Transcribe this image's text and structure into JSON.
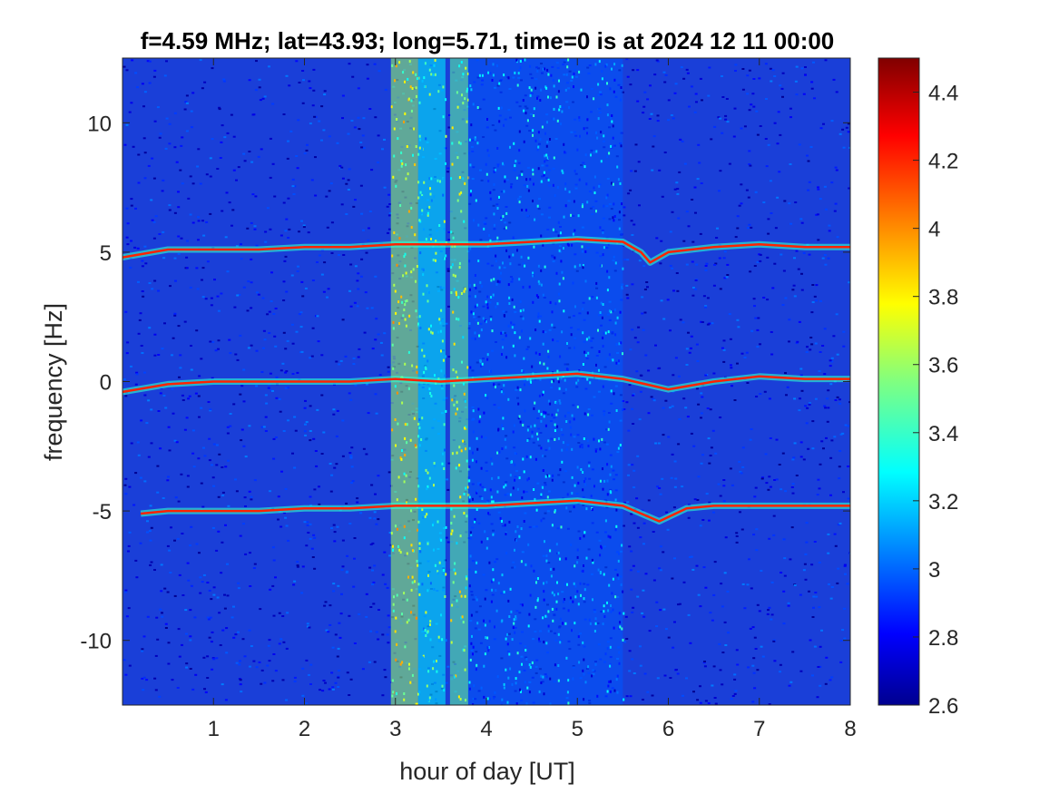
{
  "chart_data": {
    "type": "heatmap",
    "title": "f=4.59 MHz;  lat=43.93; long=5.71, time=0 is at 2024 12 11 00:00",
    "xlabel": "hour of day [UT]",
    "ylabel": "frequency [Hz]",
    "xlim": [
      0,
      8
    ],
    "ylim": [
      -12.5,
      12.5
    ],
    "x_ticks": [
      1,
      2,
      3,
      4,
      5,
      6,
      7,
      8
    ],
    "x_tick_labels": [
      "1",
      "2",
      "3",
      "4",
      "5",
      "6",
      "7",
      "8"
    ],
    "y_ticks": [
      10,
      5,
      0,
      -5,
      -10
    ],
    "y_tick_labels": [
      "10",
      "5",
      "0",
      "-5",
      "-10"
    ],
    "colorbar": {
      "colormap": "jet",
      "range": [
        2.6,
        4.5
      ],
      "ticks": [
        4.4,
        4.2,
        4,
        3.8,
        3.6,
        3.4,
        3.2,
        3,
        2.8,
        2.6
      ],
      "tick_labels": [
        "4.4",
        "4.2",
        "4",
        "3.8",
        "3.6",
        "3.4",
        "3.2",
        "3",
        "2.8",
        "2.6"
      ]
    },
    "background_level": 2.85,
    "traces": [
      {
        "center_hz": 5,
        "x_range": [
          0,
          8
        ],
        "points": [
          [
            0,
            4.8
          ],
          [
            0.5,
            5.1
          ],
          [
            1,
            5.1
          ],
          [
            1.5,
            5.1
          ],
          [
            2,
            5.2
          ],
          [
            2.5,
            5.2
          ],
          [
            3,
            5.3
          ],
          [
            3.5,
            5.3
          ],
          [
            4,
            5.3
          ],
          [
            4.5,
            5.4
          ],
          [
            5,
            5.5
          ],
          [
            5.5,
            5.4
          ],
          [
            5.7,
            5.0
          ],
          [
            5.8,
            4.6
          ],
          [
            6,
            5.0
          ],
          [
            6.5,
            5.2
          ],
          [
            7,
            5.3
          ],
          [
            7.5,
            5.2
          ],
          [
            8,
            5.2
          ]
        ]
      },
      {
        "center_hz": 0,
        "x_range": [
          0,
          8
        ],
        "points": [
          [
            0,
            -0.4
          ],
          [
            0.5,
            -0.1
          ],
          [
            1,
            0.0
          ],
          [
            1.5,
            0.0
          ],
          [
            2,
            0.0
          ],
          [
            2.5,
            0.0
          ],
          [
            3,
            0.1
          ],
          [
            3.5,
            0.0
          ],
          [
            4,
            0.1
          ],
          [
            4.5,
            0.2
          ],
          [
            5,
            0.3
          ],
          [
            5.5,
            0.1
          ],
          [
            6,
            -0.3
          ],
          [
            6.5,
            0.0
          ],
          [
            7,
            0.2
          ],
          [
            7.5,
            0.1
          ],
          [
            8,
            0.1
          ]
        ]
      },
      {
        "center_hz": -5,
        "x_range": [
          0.2,
          8
        ],
        "points": [
          [
            0.2,
            -5.1
          ],
          [
            0.5,
            -5.0
          ],
          [
            1,
            -5.0
          ],
          [
            1.5,
            -5.0
          ],
          [
            2,
            -4.9
          ],
          [
            2.5,
            -4.9
          ],
          [
            3,
            -4.8
          ],
          [
            3.5,
            -4.8
          ],
          [
            4,
            -4.8
          ],
          [
            4.5,
            -4.7
          ],
          [
            5,
            -4.6
          ],
          [
            5.5,
            -4.8
          ],
          [
            5.9,
            -5.4
          ],
          [
            6.2,
            -4.9
          ],
          [
            6.5,
            -4.8
          ],
          [
            7,
            -4.8
          ],
          [
            7.5,
            -4.8
          ],
          [
            8,
            -4.8
          ]
        ]
      }
    ],
    "broadband_bands": [
      {
        "x_range": [
          2.95,
          3.25
        ],
        "level": 3.6
      },
      {
        "x_range": [
          3.25,
          3.55
        ],
        "level": 3.3
      },
      {
        "x_range": [
          3.6,
          3.8
        ],
        "level": 3.5
      },
      {
        "x_range": [
          3.8,
          5.5
        ],
        "level": 3.0
      }
    ]
  }
}
